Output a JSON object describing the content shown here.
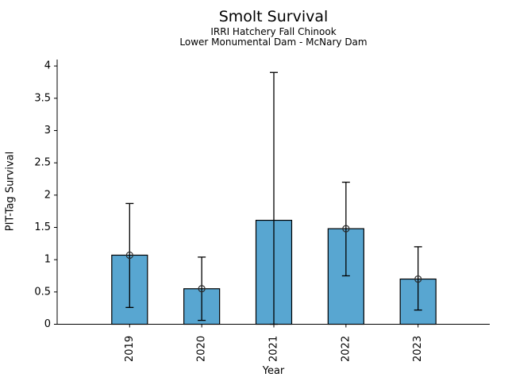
{
  "figure": {
    "background_color": "#ffffff"
  },
  "chart_data": {
    "type": "bar",
    "title": "Smolt Survival",
    "subtitle_lines": [
      "IRRI Hatchery Fall Chinook",
      "Lower Monumental Dam - McNary Dam"
    ],
    "xlabel": "Year",
    "ylabel": "PIT-Tag Survival",
    "categories": [
      "2019",
      "2020",
      "2021",
      "2022",
      "2023"
    ],
    "series": [
      {
        "name": "PIT-Tag Survival",
        "values": [
          1.07,
          0.55,
          1.61,
          1.48,
          0.7
        ],
        "error_low": [
          0.26,
          0.06,
          0,
          0.75,
          0.22
        ],
        "error_high": [
          1.87,
          1.04,
          3.9,
          2.2,
          1.2
        ],
        "point_marker_shown": [
          true,
          true,
          false,
          true,
          true
        ]
      }
    ],
    "ylim": [
      0,
      4.1
    ],
    "yticks": [
      0,
      0.5,
      1,
      1.5,
      2,
      2.5,
      3,
      3.5,
      4
    ],
    "ytick_labels": [
      "0",
      "0.5",
      "1",
      "1.5",
      "2",
      "2.5",
      "3",
      "3.5",
      "4"
    ],
    "grid": false,
    "legend": null,
    "colors": {
      "bar_fill": "#58A6D1",
      "bar_edge": "#000000",
      "error_bar": "#000000",
      "marker_edge": "#2b2b2b",
      "axis": "#000000",
      "text": "#000000"
    }
  }
}
